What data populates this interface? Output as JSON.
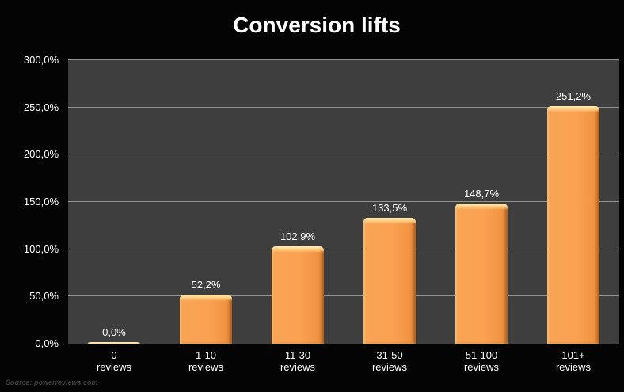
{
  "chart_data": {
    "type": "bar",
    "title": "Conversion lifts",
    "categories": [
      "0 reviews",
      "1-10 reviews",
      "11-30 reviews",
      "31-50 reviews",
      "51-100 reviews",
      "101+ reviews"
    ],
    "values": [
      0.0,
      52.2,
      102.9,
      133.5,
      148.7,
      251.2
    ],
    "value_labels": [
      "0,0%",
      "52,2%",
      "102,9%",
      "133,5%",
      "148,7%",
      "251,2%"
    ],
    "y_ticks": [
      "0,0%",
      "50,0%",
      "100,0%",
      "150,0%",
      "200,0%",
      "250,0%",
      "300,0%"
    ],
    "ylim": [
      0,
      300
    ],
    "xlabel": "",
    "ylabel": "",
    "grid": "horizontal",
    "legend": "none",
    "colors": {
      "bar_fill": "#faa252",
      "bar_highlight": "#ffeeb4",
      "bar_edge_dark": "#c1752f",
      "plot_background": "#3e3e3e",
      "page_background": "#040404",
      "gridline": "#919191",
      "text": "#ffffff"
    }
  },
  "footer": {
    "source": "Source: powerreviews.com"
  }
}
